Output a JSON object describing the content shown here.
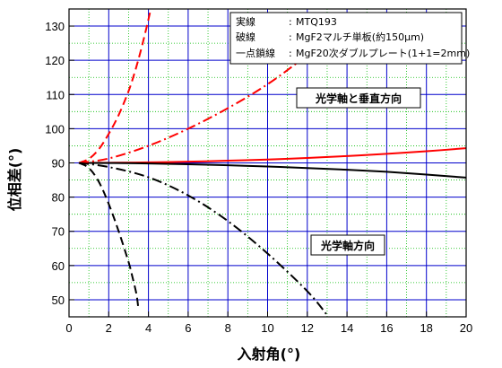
{
  "chart_data": {
    "type": "line",
    "xlabel": "入射角(°)",
    "ylabel": "位相差(°)",
    "xlim": [
      0,
      20
    ],
    "ylim": [
      45,
      135
    ],
    "xticks": [
      0,
      2,
      4,
      6,
      8,
      10,
      12,
      14,
      16,
      18,
      20
    ],
    "yticks": [
      50,
      60,
      70,
      80,
      90,
      100,
      110,
      120,
      130
    ],
    "grid": true,
    "legend": {
      "placement": "top-right",
      "rows": [
        {
          "key": "実線",
          "colon": ":",
          "value": "MTQ193"
        },
        {
          "key": "破線",
          "colon": ":",
          "value": "MgF2マルチ単板(約150μm)"
        },
        {
          "key": "一点鎖線",
          "colon": ":",
          "value": "MgF20次ダブルプレート(1+1=2mm)"
        }
      ]
    },
    "annotations": [
      {
        "text": "光学軸と垂直方向"
      },
      {
        "text": "光学軸方向"
      }
    ],
    "colors": {
      "perpendicular": "#ff0000",
      "parallel": "#000000",
      "grid_major": "#0000cc",
      "grid_minor": "#00bb00"
    },
    "series": [
      {
        "color": "#ff0000",
        "style": "solid",
        "x": [
          0.5,
          2,
          4,
          6,
          8,
          10,
          12,
          14,
          16,
          18,
          20
        ],
        "y": [
          90,
          90.04,
          90.16,
          90.35,
          90.65,
          91.0,
          91.45,
          92.0,
          92.65,
          93.4,
          94.3
        ]
      },
      {
        "color": "#000000",
        "style": "solid",
        "x": [
          0.5,
          2,
          4,
          6,
          8,
          10,
          12,
          14,
          16,
          18,
          20
        ],
        "y": [
          90,
          89.97,
          89.85,
          89.6,
          89.3,
          88.95,
          88.5,
          88.0,
          87.4,
          86.6,
          85.7
        ]
      },
      {
        "color": "#ff0000",
        "style": "dash",
        "x": [
          0.5,
          1,
          1.5,
          2,
          2.5,
          3,
          3.3,
          3.6,
          3.9,
          4.2
        ],
        "y": [
          90,
          91.2,
          94,
          98.5,
          104,
          111,
          116.3,
          122.5,
          129.5,
          137
        ]
      },
      {
        "color": "#000000",
        "style": "dash",
        "x": [
          0.5,
          1,
          1.5,
          2,
          2.5,
          3,
          3.2,
          3.4,
          3.5
        ],
        "y": [
          90,
          88.5,
          84.5,
          78,
          70,
          61,
          56.5,
          51.5,
          47
        ]
      },
      {
        "color": "#ff0000",
        "style": "dashdot",
        "x": [
          0.5,
          2,
          4,
          6,
          8,
          10,
          12,
          14
        ],
        "y": [
          90,
          91.3,
          95,
          100,
          106,
          113,
          121.5,
          130.5
        ]
      },
      {
        "color": "#000000",
        "style": "dashdot",
        "x": [
          0.5,
          2,
          4,
          6,
          8,
          10,
          12,
          13
        ],
        "y": [
          90,
          88.8,
          85.8,
          80.5,
          73,
          63.5,
          52.5,
          45.5
        ]
      }
    ]
  }
}
